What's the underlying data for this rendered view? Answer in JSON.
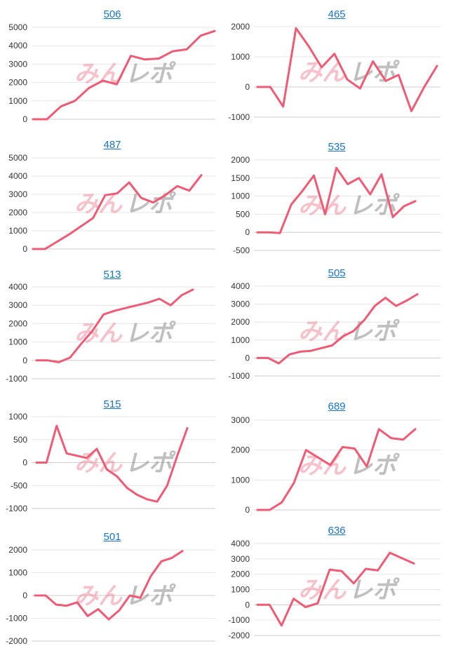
{
  "watermark": {
    "part1": "みん",
    "part2": "レポ"
  },
  "colors": {
    "line": "#ef5b74",
    "title_link": "#1a73c9"
  },
  "chart_data": [
    {
      "type": "line",
      "title": "506",
      "ylim": [
        0,
        5000
      ],
      "yticks": [
        0,
        1000,
        2000,
        3000,
        4000,
        5000
      ],
      "values": [
        0,
        0,
        700,
        1000,
        1700,
        2100,
        1900,
        3450,
        3250,
        3300,
        3700,
        3800,
        4550,
        4800
      ]
    },
    {
      "type": "line",
      "title": "465",
      "ylim": [
        -1000,
        2000
      ],
      "yticks": [
        -1000,
        0,
        1000,
        2000
      ],
      "values": [
        0,
        0,
        -650,
        1950,
        1350,
        650,
        1100,
        250,
        -50,
        850,
        200,
        400,
        -800,
        0,
        700
      ]
    },
    {
      "type": "line",
      "title": "487",
      "ylim": [
        0,
        5000
      ],
      "yticks": [
        0,
        1000,
        2000,
        3000,
        4000,
        5000
      ],
      "values": [
        0,
        0,
        400,
        800,
        1250,
        1700,
        2950,
        3050,
        3650,
        2800,
        2550,
        2950,
        3450,
        3200,
        4050
      ]
    },
    {
      "type": "line",
      "title": "535",
      "ylim": [
        -500,
        2000
      ],
      "yticks": [
        -500,
        0,
        500,
        1000,
        1500,
        2000
      ],
      "values": [
        0,
        0,
        -20,
        770,
        1150,
        1570,
        500,
        1780,
        1330,
        1500,
        1050,
        1600,
        420,
        720,
        860
      ]
    },
    {
      "type": "line",
      "title": "513",
      "ylim": [
        -1000,
        4000
      ],
      "yticks": [
        -1000,
        0,
        1000,
        2000,
        3000,
        4000
      ],
      "values": [
        0,
        0,
        -100,
        150,
        900,
        1600,
        2500,
        2700,
        2850,
        3000,
        3150,
        3350,
        3000,
        3550,
        3850
      ]
    },
    {
      "type": "line",
      "title": "505",
      "ylim": [
        -1000,
        4000
      ],
      "yticks": [
        -1000,
        0,
        1000,
        2000,
        3000,
        4000
      ],
      "values": [
        0,
        0,
        -300,
        200,
        350,
        400,
        550,
        700,
        1200,
        1500,
        2100,
        2900,
        3350,
        2900,
        3200,
        3550
      ]
    },
    {
      "type": "line",
      "title": "515",
      "ylim": [
        -1000,
        1000
      ],
      "yticks": [
        -1000,
        -500,
        0,
        500,
        1000
      ],
      "values": [
        0,
        0,
        800,
        200,
        150,
        100,
        300,
        -150,
        -300,
        -550,
        -700,
        -800,
        -850,
        -500,
        150,
        750
      ]
    },
    {
      "type": "line",
      "title": "689",
      "ylim": [
        0,
        3000
      ],
      "yticks": [
        0,
        1000,
        2000,
        3000
      ],
      "values": [
        0,
        0,
        250,
        900,
        2000,
        1750,
        1500,
        2100,
        2050,
        1450,
        2700,
        2400,
        2350,
        2700
      ]
    },
    {
      "type": "line",
      "title": "501",
      "ylim": [
        -2000,
        2000
      ],
      "yticks": [
        -2000,
        -1000,
        0,
        1000,
        2000
      ],
      "values": [
        0,
        0,
        -400,
        -450,
        -300,
        -900,
        -600,
        -1050,
        -650,
        0,
        -100,
        850,
        1500,
        1650,
        1950
      ]
    },
    {
      "type": "line",
      "title": "636",
      "ylim": [
        -2000,
        4000
      ],
      "yticks": [
        -2000,
        -1000,
        0,
        1000,
        2000,
        3000,
        4000
      ],
      "values": [
        0,
        0,
        -1350,
        400,
        -150,
        100,
        2300,
        2200,
        1400,
        2350,
        2250,
        3400,
        3050,
        2700
      ]
    }
  ]
}
